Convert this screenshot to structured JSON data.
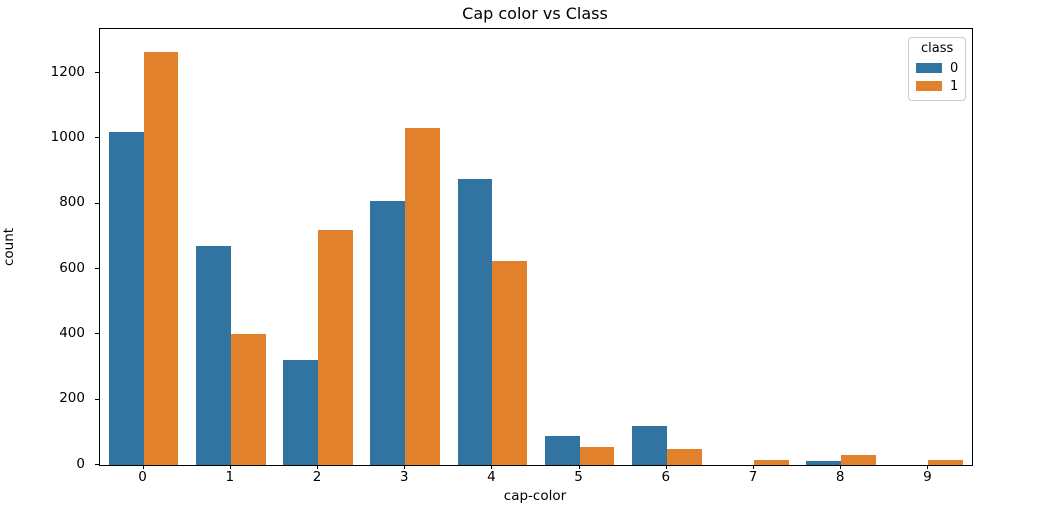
{
  "title": "Cap color vs Class",
  "chart_data": {
    "type": "bar",
    "title": "Cap color vs Class",
    "xlabel": "cap-color",
    "ylabel": "count",
    "categories": [
      "0",
      "1",
      "2",
      "3",
      "4",
      "5",
      "6",
      "7",
      "8",
      "9"
    ],
    "series": [
      {
        "name": "0",
        "color": "#3274a1",
        "values": [
          1020,
          672,
          320,
          808,
          876,
          88,
          120,
          0,
          12,
          0
        ]
      },
      {
        "name": "1",
        "color": "#e1812c",
        "values": [
          1264,
          400,
          720,
          1032,
          624,
          56,
          48,
          16,
          32,
          16
        ]
      }
    ],
    "ylim": [
      0,
      1335
    ],
    "yticks": [
      0,
      200,
      400,
      600,
      800,
      1000,
      1200
    ],
    "grid": false,
    "legend": {
      "title": "class",
      "position": "upper right",
      "labels": [
        "0",
        "1"
      ]
    }
  }
}
